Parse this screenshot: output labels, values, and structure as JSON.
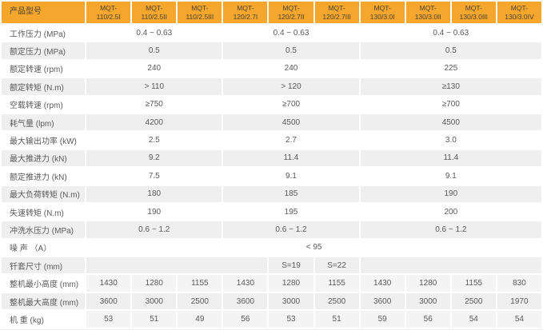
{
  "colors": {
    "header_bg": "#F5A62C",
    "header_text": "#4D4433",
    "row_stripe": "#EFEFEF",
    "cell_tint": "#F4F4F4",
    "body_text": "#595959"
  },
  "table": {
    "corner_label": "产品型号",
    "models": [
      {
        "line1": "MQT-",
        "line2": "110/2.5I"
      },
      {
        "line1": "MQT-",
        "line2": "110/2.5II"
      },
      {
        "line1": "MQT-",
        "line2": "110/2.5III"
      },
      {
        "line1": "MQT-",
        "line2": "120/2.7I"
      },
      {
        "line1": "MQT-",
        "line2": "120/2.7II"
      },
      {
        "line1": "MQT-",
        "line2": "120/2.7III"
      },
      {
        "line1": "MQT-",
        "line2": "130/3.0I"
      },
      {
        "line1": "MQT-",
        "line2": "130/3.0II"
      },
      {
        "line1": "MQT-",
        "line2": "130/3.0III"
      },
      {
        "line1": "MQT-",
        "line2": "130/3.0IV"
      }
    ],
    "rows": [
      {
        "label": "工作压力 (MPa)",
        "cells": [
          {
            "text": "0.4 ~ 0.63",
            "span": 3
          },
          {
            "text": "0.4 ~ 0.63",
            "span": 3
          },
          {
            "text": "0.4 ~ 0.63",
            "span": 4
          }
        ]
      },
      {
        "label": "额定压力 (MPa)",
        "cells": [
          {
            "text": "0.5",
            "span": 3
          },
          {
            "text": "0.5",
            "span": 3
          },
          {
            "text": "0.5",
            "span": 4
          }
        ]
      },
      {
        "label": "额定转速 (rpm)",
        "cells": [
          {
            "text": "240",
            "span": 3
          },
          {
            "text": "240",
            "span": 3
          },
          {
            "text": "225",
            "span": 4
          }
        ]
      },
      {
        "label": "额定转矩 (N.m)",
        "cells": [
          {
            "text": "> 110",
            "span": 3
          },
          {
            "text": "> 120",
            "span": 3
          },
          {
            "text": "≥130",
            "span": 4
          }
        ]
      },
      {
        "label": "空载转速 (rpm)",
        "cells": [
          {
            "text": "≥750",
            "span": 3
          },
          {
            "text": "≥700",
            "span": 3
          },
          {
            "text": "≥700",
            "span": 4
          }
        ]
      },
      {
        "label": "耗气量 (lpm)",
        "cells": [
          {
            "text": "4200",
            "span": 3
          },
          {
            "text": "4500",
            "span": 3
          },
          {
            "text": "4500",
            "span": 4
          }
        ]
      },
      {
        "label": "最大输出功率 (kW)",
        "cells": [
          {
            "text": "2.5",
            "span": 3
          },
          {
            "text": "2.7",
            "span": 3
          },
          {
            "text": "3.0",
            "span": 4
          }
        ]
      },
      {
        "label": "最大推进力 (kN)",
        "cells": [
          {
            "text": "9.2",
            "span": 3
          },
          {
            "text": "11.4",
            "span": 3
          },
          {
            "text": "11.4",
            "span": 4
          }
        ]
      },
      {
        "label": "额定推进力 (kN)",
        "cells": [
          {
            "text": "7.5",
            "span": 3
          },
          {
            "text": "9.1",
            "span": 3
          },
          {
            "text": "9.1",
            "span": 4
          }
        ]
      },
      {
        "label": "最大负荷转矩 (N.m)",
        "cells": [
          {
            "text": "180",
            "span": 3
          },
          {
            "text": "185",
            "span": 3
          },
          {
            "text": "190",
            "span": 4
          }
        ]
      },
      {
        "label": "失速转矩 (N.m)",
        "cells": [
          {
            "text": "190",
            "span": 3
          },
          {
            "text": "195",
            "span": 3
          },
          {
            "text": "200",
            "span": 4
          }
        ]
      },
      {
        "label": "冲洗水压力 (MPa)",
        "cells": [
          {
            "text": "0.6 ~ 1.2",
            "span": 3
          },
          {
            "text": "0.6 ~ 1.2",
            "span": 3
          },
          {
            "text": "0.6 ~ 1.2",
            "span": 4
          }
        ]
      },
      {
        "label": "噪 声 （A）",
        "cells": [
          {
            "text": "< 95",
            "span": 10
          }
        ]
      },
      {
        "label": "钎套尺寸 (mm)",
        "cells": [
          {
            "text": "",
            "span": 4
          },
          {
            "text": "S=19",
            "span": 1
          },
          {
            "text": "S=22",
            "span": 1
          },
          {
            "text": "",
            "span": 4
          }
        ]
      },
      {
        "label": "整机最小高度 (mm)",
        "cells": [
          {
            "text": "1430",
            "span": 1
          },
          {
            "text": "1280",
            "span": 1
          },
          {
            "text": "1155",
            "span": 1
          },
          {
            "text": "1430",
            "span": 1
          },
          {
            "text": "1280",
            "span": 1
          },
          {
            "text": "1155",
            "span": 1
          },
          {
            "text": "1430",
            "span": 1
          },
          {
            "text": "1280",
            "span": 1
          },
          {
            "text": "1155",
            "span": 1
          },
          {
            "text": "830",
            "span": 1
          }
        ]
      },
      {
        "label": "整机最大高度 (mm)",
        "cells": [
          {
            "text": "3600",
            "span": 1
          },
          {
            "text": "3000",
            "span": 1
          },
          {
            "text": "2500",
            "span": 1
          },
          {
            "text": "3600",
            "span": 1
          },
          {
            "text": "3000",
            "span": 1
          },
          {
            "text": "2500",
            "span": 1
          },
          {
            "text": "3600",
            "span": 1
          },
          {
            "text": "3000",
            "span": 1
          },
          {
            "text": "2500",
            "span": 1
          },
          {
            "text": "1970",
            "span": 1
          }
        ]
      },
      {
        "label": "机 重 (kg)",
        "cells": [
          {
            "text": "53",
            "span": 1
          },
          {
            "text": "51",
            "span": 1
          },
          {
            "text": "49",
            "span": 1
          },
          {
            "text": "56",
            "span": 1
          },
          {
            "text": "53",
            "span": 1
          },
          {
            "text": "51",
            "span": 1
          },
          {
            "text": "59",
            "span": 1
          },
          {
            "text": "56",
            "span": 1
          },
          {
            "text": "54",
            "span": 1
          },
          {
            "text": "54",
            "span": 1
          }
        ]
      }
    ]
  }
}
